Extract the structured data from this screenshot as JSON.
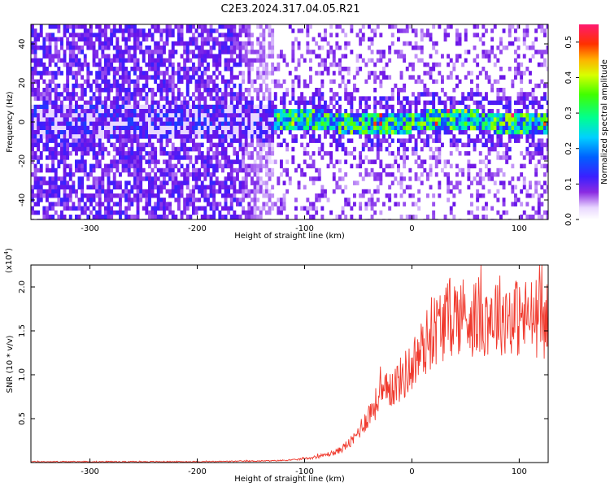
{
  "figure": {
    "title": "C2E3.2024.317.04.05.R21"
  },
  "chart_data": [
    {
      "type": "heatmap",
      "xlabel": "Height of straight line (km)",
      "ylabel": "Frequency (Hz)",
      "xlim": [
        -355,
        127
      ],
      "ylim": [
        -50,
        50
      ],
      "xticks": [
        -300,
        -200,
        -100,
        0,
        100
      ],
      "yticks": [
        -40,
        -20,
        0,
        20,
        40
      ],
      "colorbar": {
        "label": "Normalized spectral amplitude",
        "range": [
          0.0,
          0.55
        ],
        "ticks": [
          0.0,
          0.1,
          0.2,
          0.3,
          0.4,
          0.5
        ],
        "tick_labels": [
          "0.0",
          "0.1",
          "0.2",
          "0.3",
          "0.4",
          "0.5"
        ],
        "colormap": "rainbow (white-violet-blue-cyan-green-yellow-red-magenta)"
      },
      "description_of_field": {
        "noise_region_x": [
          -355,
          -145
        ],
        "signal_region_x": [
          -145,
          127
        ],
        "signal_frequency_center_hz": 1,
        "signal_band_halfwidth_hz": 5,
        "peak_amplitude": 0.55
      }
    },
    {
      "type": "line",
      "xlabel": "Height of straight line (km)",
      "ylabel": "SNR (10 * v/v)",
      "yscale_label": "(x10",
      "yscale_exponent": "4",
      "xlim": [
        -355,
        127
      ],
      "ylim": [
        0,
        2.25
      ],
      "xticks": [
        -300,
        -200,
        -100,
        0,
        100
      ],
      "yticks": [
        0.5,
        1.0,
        1.5,
        2.0
      ],
      "ytick_labels": [
        "0.5",
        "1.0",
        "1.5",
        "2.0"
      ],
      "series": [
        {
          "color": "#f03a2e",
          "x": [
            -355,
            -300,
            -250,
            -200,
            -160,
            -130,
            -110,
            -90,
            -70,
            -55,
            -45,
            -35,
            -28,
            -20,
            -10,
            0,
            10,
            20,
            30,
            40,
            60,
            80,
            100,
            115,
            127
          ],
          "y": [
            0.01,
            0.01,
            0.01,
            0.01,
            0.015,
            0.02,
            0.03,
            0.06,
            0.12,
            0.25,
            0.45,
            0.65,
            0.75,
            0.85,
            0.95,
            1.1,
            1.3,
            1.5,
            1.6,
            1.7,
            1.65,
            1.7,
            1.65,
            1.65,
            1.6
          ]
        }
      ]
    }
  ]
}
